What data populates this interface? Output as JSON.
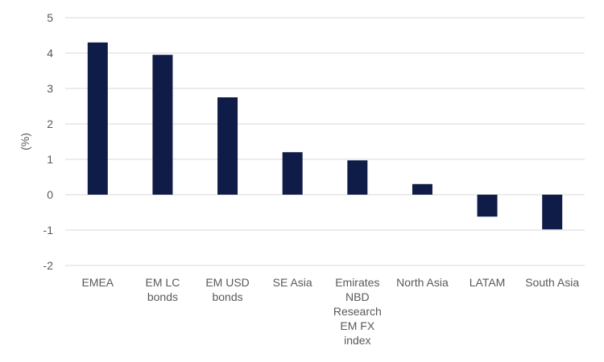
{
  "chart_data": {
    "type": "bar",
    "ylabel": "(%)",
    "ylim": [
      -2,
      5
    ],
    "yticks": [
      5,
      4,
      3,
      2,
      1,
      0,
      -1,
      -2
    ],
    "grid": true,
    "categories": [
      [
        "EMEA"
      ],
      [
        "EM LC",
        "bonds"
      ],
      [
        "EM USD",
        "bonds"
      ],
      [
        "SE Asia"
      ],
      [
        "Emirates",
        "NBD",
        "Research",
        "EM FX",
        "index"
      ],
      [
        "North Asia"
      ],
      [
        "LATAM"
      ],
      [
        "South Asia"
      ]
    ],
    "values": [
      4.3,
      3.95,
      2.75,
      1.2,
      0.97,
      0.3,
      -0.62,
      -0.98
    ],
    "colors": {
      "bar": "#0f1c47",
      "grid": "#d9d9d9",
      "text": "#595959"
    }
  }
}
